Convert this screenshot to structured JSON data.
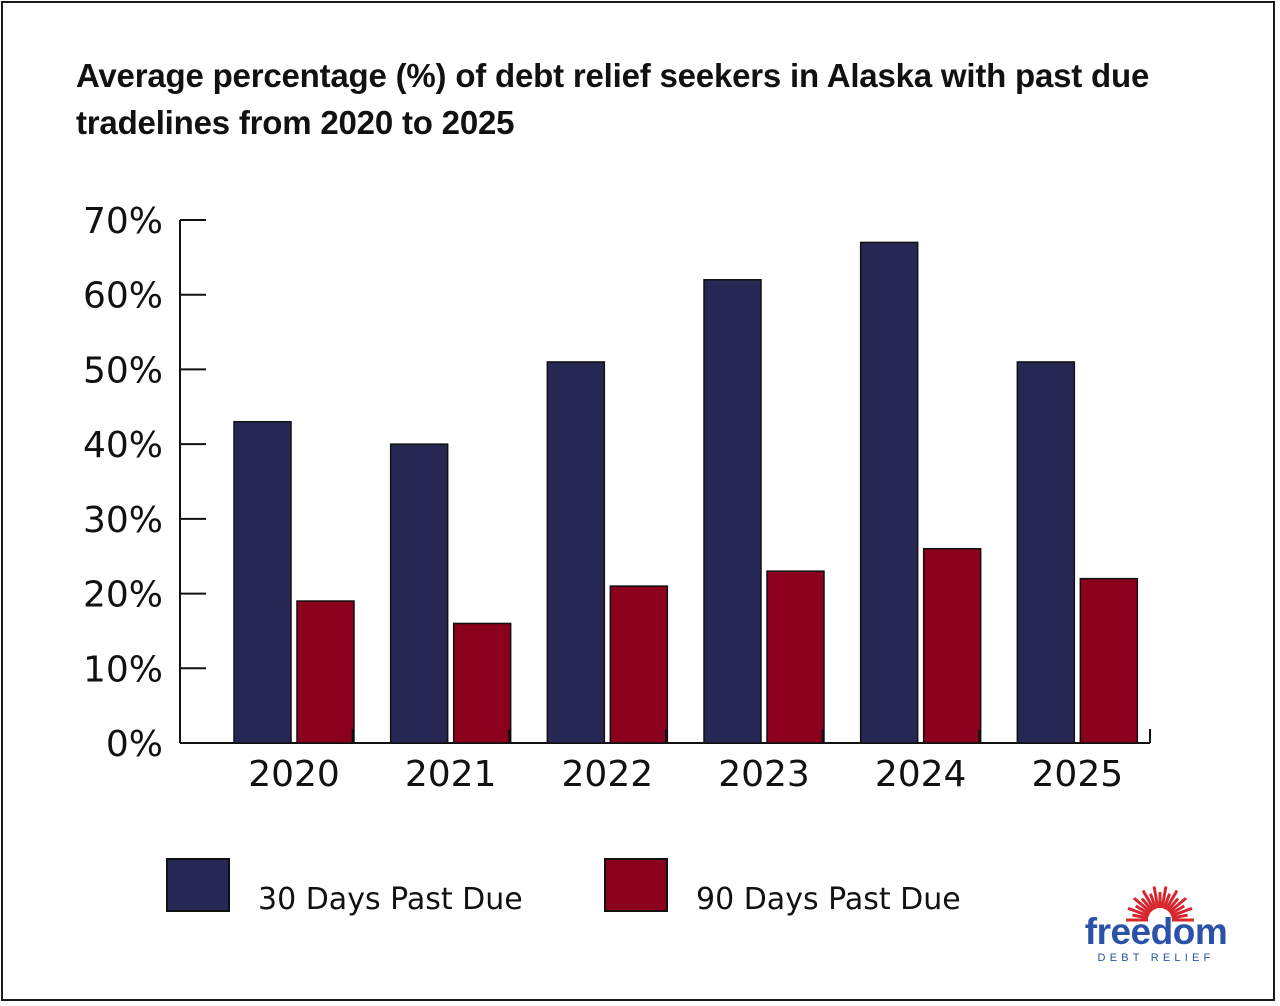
{
  "chart_data": {
    "type": "bar",
    "title": "Average percentage (%) of debt relief seekers in Alaska with past due tradelines from 2020 to 2025",
    "categories": [
      "2020",
      "2021",
      "2022",
      "2023",
      "2024",
      "2025"
    ],
    "series": [
      {
        "name": "30 Days Past Due",
        "color": "#272755",
        "values": [
          43,
          40,
          51,
          62,
          67,
          51
        ]
      },
      {
        "name": "90 Days Past Due",
        "color": "#8b001d",
        "values": [
          19,
          16,
          21,
          23,
          26,
          22
        ]
      }
    ],
    "ylim": [
      0,
      70
    ],
    "yticks": [
      0,
      10,
      20,
      30,
      40,
      50,
      60,
      70
    ],
    "ytick_labels": [
      "0%",
      "10%",
      "20%",
      "30%",
      "40%",
      "50%",
      "60%",
      "70%"
    ],
    "xlabel": "",
    "ylabel": "",
    "grid": false,
    "legend_position": "bottom-left"
  },
  "logo": {
    "word": "freedom",
    "sub": "DEBT RELIEF",
    "color": "#2a52a8",
    "sun_color": "#d7262e"
  }
}
